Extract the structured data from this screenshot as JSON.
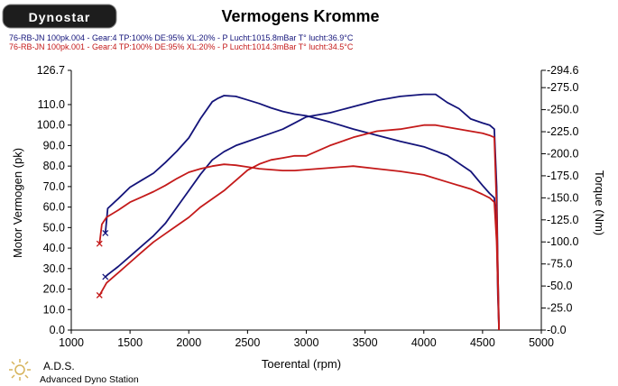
{
  "logo": {
    "text": "Dynostar"
  },
  "footer": {
    "title": "A.D.S.",
    "subtitle": "Advanced Dyno Station"
  },
  "colors": {
    "blue": "#14147a",
    "red": "#c41a1a",
    "axis": "#000000"
  },
  "chart_data": {
    "type": "line",
    "title": "Vermogens Kromme",
    "xlabel": "Toerental (rpm)",
    "ylabel": "Motor Vermogen (pk)",
    "y2label": "Torque (Nm)",
    "xlim": [
      1000,
      5000
    ],
    "ylim": [
      0,
      126.7
    ],
    "y2lim": [
      0,
      294.6
    ],
    "x_ticks": [
      "1000",
      "1500",
      "2000",
      "2500",
      "3000",
      "3500",
      "4000",
      "4500",
      "5000"
    ],
    "y_ticks": [
      "0.0",
      "10.0",
      "20.0",
      "30.0",
      "40.0",
      "50.0",
      "60.0",
      "70.0",
      "80.0",
      "90.0",
      "100.0",
      "110.0",
      "126.7"
    ],
    "y_tick_values": [
      0,
      10,
      20,
      30,
      40,
      50,
      60,
      70,
      80,
      90,
      100,
      110,
      126.7
    ],
    "y2_ticks": [
      "0.0",
      "25.0",
      "50.0",
      "75.0",
      "100.0",
      "125.0",
      "150.0",
      "175.0",
      "200.0",
      "225.0",
      "250.0",
      "275.0",
      "294.6"
    ],
    "y2_tick_values": [
      0,
      25,
      50,
      75,
      100,
      125,
      150,
      175,
      200,
      225,
      250,
      275,
      294.6
    ],
    "legend_lines": [
      {
        "text": "76-RB-JN 100pk.004 - Gear:4 TP:100% DE:95% XL:20%   - P Lucht:1015.8mBar T° lucht:36.9°C",
        "color": "#14147a"
      },
      {
        "text": "76-RB-JN 100pk.001 - Gear:4 TP:100% DE:95% XL:20%   - P Lucht:1014.3mBar T° lucht:34.5°C",
        "color": "#c41a1a"
      }
    ],
    "series": [
      {
        "color": "#14147a",
        "axis": "left",
        "x": [
          1290,
          1310,
          1400,
          1500,
          1600,
          1700,
          1800,
          1900,
          2000,
          2100,
          2200,
          2300,
          2400,
          2500,
          2600,
          2700,
          2800,
          2900,
          3000,
          3200,
          3400,
          3600,
          3800,
          4000,
          4100,
          4200,
          4300,
          4400,
          4500,
          4560,
          4600,
          4620,
          4630,
          4640
        ],
        "y": [
          26,
          27,
          31,
          36,
          41,
          46,
          52,
          60,
          68,
          76,
          83,
          87,
          90,
          92,
          94,
          96,
          98,
          101,
          104,
          106,
          109,
          112,
          114,
          115,
          115,
          111,
          108,
          103,
          101,
          100,
          98,
          70,
          30,
          0
        ]
      },
      {
        "color": "#14147a",
        "axis": "right",
        "x": [
          1290,
          1310,
          1400,
          1500,
          1600,
          1700,
          1800,
          1900,
          2000,
          2100,
          2200,
          2250,
          2300,
          2400,
          2500,
          2600,
          2700,
          2800,
          2900,
          3000,
          3200,
          3400,
          3600,
          3800,
          4000,
          4200,
          4400,
          4500,
          4560,
          4600,
          4620,
          4630,
          4640
        ],
        "y": [
          110,
          138,
          149,
          162,
          170,
          178,
          190,
          203,
          218,
          240,
          259,
          263,
          266,
          265,
          261,
          257,
          252,
          248,
          245,
          243,
          236,
          228,
          221,
          214,
          208,
          198,
          180,
          164,
          155,
          150,
          120,
          40,
          0
        ]
      },
      {
        "color": "#c41a1a",
        "axis": "left",
        "x": [
          1240,
          1300,
          1400,
          1500,
          1600,
          1700,
          1800,
          1900,
          2000,
          2100,
          2200,
          2300,
          2400,
          2500,
          2600,
          2700,
          2800,
          2900,
          3000,
          3200,
          3400,
          3600,
          3800,
          4000,
          4100,
          4200,
          4300,
          4400,
          4500,
          4560,
          4600,
          4620,
          4640
        ],
        "y": [
          17,
          23,
          28,
          33,
          38,
          43,
          47,
          51,
          55,
          60,
          64,
          68,
          73,
          78,
          81,
          83,
          84,
          85,
          85,
          90,
          94,
          97,
          98,
          100,
          100,
          99,
          98,
          97,
          96,
          95,
          94,
          60,
          0
        ]
      },
      {
        "color": "#c41a1a",
        "axis": "right",
        "x": [
          1240,
          1260,
          1300,
          1400,
          1500,
          1600,
          1700,
          1800,
          1900,
          2000,
          2100,
          2200,
          2300,
          2400,
          2500,
          2600,
          2700,
          2800,
          2900,
          3000,
          3200,
          3400,
          3600,
          3800,
          4000,
          4200,
          4400,
          4500,
          4560,
          4600,
          4620,
          4640
        ],
        "y": [
          98,
          120,
          128,
          136,
          145,
          151,
          157,
          164,
          172,
          179,
          183,
          186,
          188,
          187,
          185,
          183,
          182,
          181,
          181,
          182,
          184,
          186,
          183,
          180,
          176,
          168,
          160,
          154,
          150,
          145,
          100,
          0
        ]
      }
    ]
  }
}
